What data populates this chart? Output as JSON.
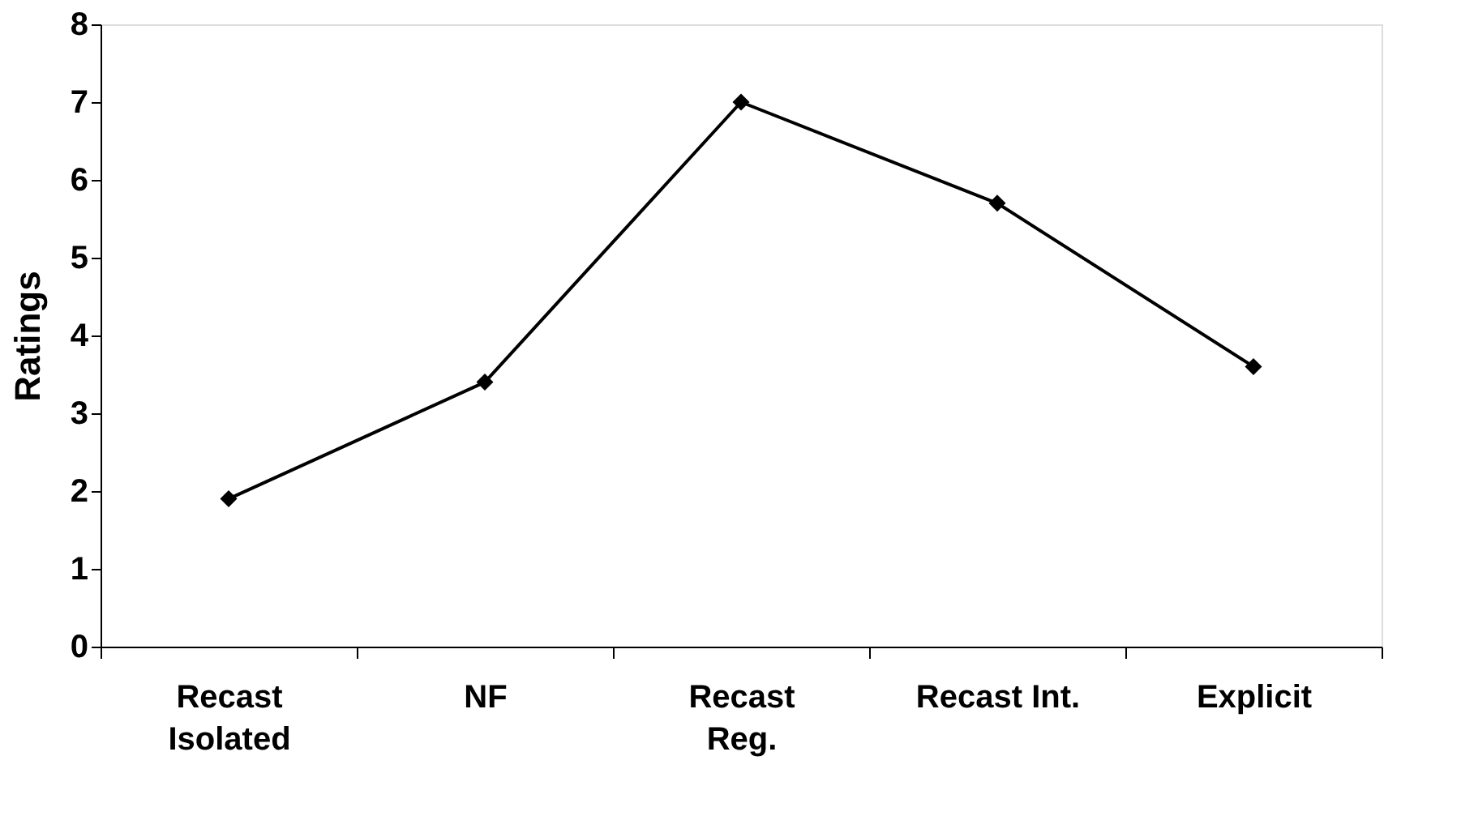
{
  "chart_data": {
    "type": "line",
    "ylabel": "Ratings",
    "categories": [
      "Recast\nIsolated",
      "NF",
      "Recast\nReg.",
      "Recast Int.",
      "Explicit"
    ],
    "series": [
      {
        "color": "#000000",
        "values": [
          1.9,
          3.4,
          7.0,
          5.7,
          3.6
        ]
      }
    ],
    "ylim": [
      0,
      8
    ],
    "yticks": [
      0,
      1,
      2,
      3,
      4,
      5,
      6,
      7,
      8
    ],
    "grid": false,
    "marker": "diamond",
    "line_style": "solid"
  }
}
